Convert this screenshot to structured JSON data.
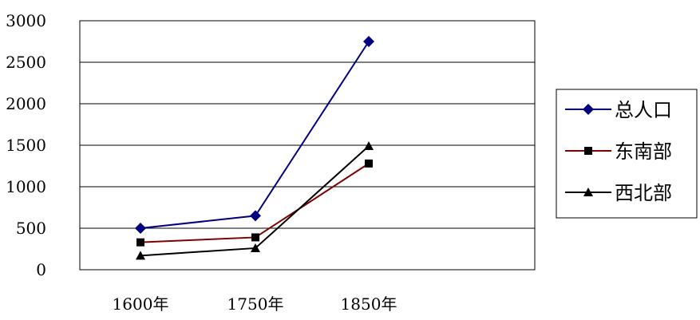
{
  "chart_data": {
    "type": "line",
    "title": "",
    "xlabel": "",
    "ylabel": "",
    "categories": [
      "1600年",
      "1750年",
      "1850年"
    ],
    "ylim": [
      0,
      3000
    ],
    "yticks": [
      "3000",
      "2500",
      "2000",
      "1500",
      "1000",
      "500",
      "0"
    ],
    "grid": true,
    "legend_position": "right",
    "series": [
      {
        "name": "总人口",
        "values": [
          500,
          650,
          2750
        ],
        "color": "#000080",
        "marker": "diamond"
      },
      {
        "name": "东南部",
        "values": [
          330,
          390,
          1280
        ],
        "color": "#800000",
        "marker": "square"
      },
      {
        "name": "西北部",
        "values": [
          170,
          260,
          1490
        ],
        "color": "#000000",
        "marker": "triangle"
      }
    ]
  }
}
